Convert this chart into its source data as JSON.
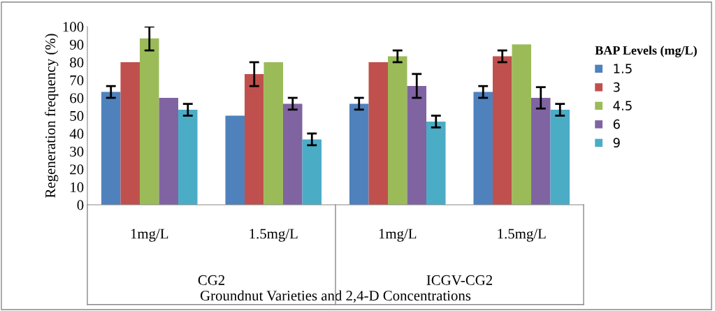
{
  "chart_data": {
    "type": "bar",
    "xlabel": "Groundnut Varieties and 2,4-D Concentrations",
    "ylabel": "Regeneration frequency (%)",
    "legend_title": "BAP Levels (mg/L)",
    "categories": [
      "1mg/L",
      "1.5mg/L",
      "1mg/L",
      "1.5mg/L"
    ],
    "annotations": [
      "CG2",
      "ICGV-CG2"
    ],
    "series": [
      {
        "name": "1.5",
        "color": "#4f81bd",
        "values": [
          63.3,
          50,
          56.7,
          63.3
        ],
        "errors": [
          3.3,
          null,
          3.3,
          3.3
        ]
      },
      {
        "name": "3",
        "color": "#c0504d",
        "values": [
          80,
          73.3,
          80,
          83.3
        ],
        "errors": [
          null,
          6.7,
          null,
          3.3
        ]
      },
      {
        "name": "4.5",
        "color": "#9bbb59",
        "values": [
          93.3,
          80,
          83.3,
          90
        ],
        "errors": [
          6.7,
          null,
          3.3,
          null
        ]
      },
      {
        "name": "6",
        "color": "#8064a2",
        "values": [
          60,
          56.7,
          66.7,
          60
        ],
        "errors": [
          null,
          3.3,
          6.7,
          6
        ]
      },
      {
        "name": "9",
        "color": "#4bacc6",
        "values": [
          53.3,
          36.7,
          46.7,
          53.3
        ],
        "errors": [
          3.3,
          3.3,
          3.3,
          3.3
        ]
      }
    ],
    "ylim": [
      0,
      100
    ],
    "yticks": [
      0,
      10,
      20,
      30,
      40,
      50,
      60,
      70,
      80,
      90,
      100
    ],
    "grid": false,
    "legend": "right"
  }
}
